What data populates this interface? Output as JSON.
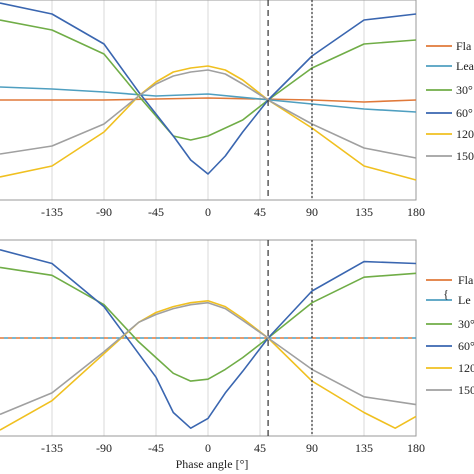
{
  "chart_data": [
    {
      "type": "line",
      "xlim": [
        -180,
        180
      ],
      "ylim": [
        0,
        1
      ],
      "x_ticks": [
        -135,
        -90,
        -45,
        0,
        45,
        90,
        135,
        180
      ],
      "x_tick_labels": [
        "-135",
        "-90",
        "-45",
        "0",
        "45",
        "90",
        "135",
        "180"
      ],
      "xlabel": "",
      "grid": "vertical",
      "reference_lines": [
        {
          "x": 52,
          "style": "dashed"
        },
        {
          "x": 90,
          "style": "dotted"
        }
      ],
      "legend_position": "right",
      "legend_entries": [
        "Fla",
        "Lea",
        "30°",
        "60°",
        "120",
        "150"
      ],
      "colors": {
        "Fla": "#e0793a",
        "Lea": "#4f9fc0",
        "30°": "#70ad47",
        "60°": "#3a66b0",
        "120": "#f0c020",
        "150": "#a0a0a0"
      },
      "series": [
        {
          "name": "Fla",
          "points": [
            [
              -180,
              0.5
            ],
            [
              -135,
              0.5
            ],
            [
              -90,
              0.5
            ],
            [
              -45,
              0.505
            ],
            [
              0,
              0.51
            ],
            [
              45,
              0.505
            ],
            [
              90,
              0.5
            ],
            [
              135,
              0.49
            ],
            [
              180,
              0.5
            ]
          ]
        },
        {
          "name": "Lea",
          "points": [
            [
              -180,
              0.565
            ],
            [
              -135,
              0.555
            ],
            [
              -90,
              0.54
            ],
            [
              -45,
              0.52
            ],
            [
              0,
              0.53
            ],
            [
              45,
              0.505
            ],
            [
              90,
              0.48
            ],
            [
              135,
              0.455
            ],
            [
              180,
              0.44
            ]
          ]
        },
        {
          "name": "30°",
          "points": [
            [
              -180,
              0.9
            ],
            [
              -135,
              0.85
            ],
            [
              -90,
              0.73
            ],
            [
              -60,
              0.52
            ],
            [
              -45,
              0.42
            ],
            [
              -30,
              0.32
            ],
            [
              -15,
              0.3
            ],
            [
              0,
              0.32
            ],
            [
              30,
              0.4
            ],
            [
              52,
              0.5
            ],
            [
              90,
              0.66
            ],
            [
              135,
              0.78
            ],
            [
              180,
              0.8
            ]
          ]
        },
        {
          "name": "60°",
          "points": [
            [
              -180,
              0.985
            ],
            [
              -135,
              0.93
            ],
            [
              -90,
              0.78
            ],
            [
              -60,
              0.54
            ],
            [
              -45,
              0.43
            ],
            [
              -30,
              0.32
            ],
            [
              -15,
              0.2
            ],
            [
              0,
              0.13
            ],
            [
              15,
              0.22
            ],
            [
              30,
              0.34
            ],
            [
              52,
              0.5
            ],
            [
              90,
              0.72
            ],
            [
              135,
              0.9
            ],
            [
              180,
              0.93
            ]
          ]
        },
        {
          "name": "120",
          "points": [
            [
              -180,
              0.115
            ],
            [
              -135,
              0.17
            ],
            [
              -90,
              0.34
            ],
            [
              -60,
              0.52
            ],
            [
              -45,
              0.59
            ],
            [
              -30,
              0.64
            ],
            [
              -15,
              0.66
            ],
            [
              0,
              0.67
            ],
            [
              15,
              0.65
            ],
            [
              30,
              0.6
            ],
            [
              52,
              0.5
            ],
            [
              90,
              0.36
            ],
            [
              135,
              0.17
            ],
            [
              180,
              0.1
            ]
          ]
        },
        {
          "name": "150",
          "points": [
            [
              -180,
              0.23
            ],
            [
              -135,
              0.27
            ],
            [
              -90,
              0.38
            ],
            [
              -60,
              0.52
            ],
            [
              -45,
              0.58
            ],
            [
              -30,
              0.62
            ],
            [
              -15,
              0.64
            ],
            [
              0,
              0.65
            ],
            [
              15,
              0.63
            ],
            [
              30,
              0.58
            ],
            [
              52,
              0.5
            ],
            [
              90,
              0.38
            ],
            [
              135,
              0.26
            ],
            [
              180,
              0.21
            ]
          ]
        }
      ]
    },
    {
      "type": "line",
      "xlim": [
        -180,
        180
      ],
      "ylim": [
        0,
        1
      ],
      "x_ticks": [
        -135,
        -90,
        -45,
        0,
        45,
        90,
        135,
        180
      ],
      "x_tick_labels": [
        "-135",
        "-90",
        "-45",
        "0",
        "45",
        "90",
        "135",
        "180"
      ],
      "xlabel": "Phase angle [°]",
      "grid": "vertical",
      "reference_lines": [
        {
          "x": 52,
          "style": "dashed"
        },
        {
          "x": 90,
          "style": "dotted"
        }
      ],
      "legend_position": "right",
      "legend_entries": [
        "Fla",
        "Le",
        "30°",
        "60°",
        "120",
        "150"
      ],
      "legend_brace": "{",
      "colors": {
        "Fla": "#e0793a",
        "Le": "#4f9fc0",
        "30°": "#70ad47",
        "60°": "#3a66b0",
        "120": "#f0c020",
        "150": "#a0a0a0"
      },
      "series": [
        {
          "name": "Fla",
          "style": "dashed",
          "points": [
            [
              -180,
              0.5
            ],
            [
              0,
              0.5
            ],
            [
              180,
              0.5
            ]
          ]
        },
        {
          "name": "Le",
          "style": "dashed-offset",
          "points": [
            [
              -180,
              0.5
            ],
            [
              0,
              0.5
            ],
            [
              180,
              0.5
            ]
          ]
        },
        {
          "name": "30°",
          "points": [
            [
              -180,
              0.86
            ],
            [
              -135,
              0.82
            ],
            [
              -90,
              0.67
            ],
            [
              -60,
              0.48
            ],
            [
              -45,
              0.4
            ],
            [
              -30,
              0.32
            ],
            [
              -15,
              0.28
            ],
            [
              0,
              0.29
            ],
            [
              15,
              0.34
            ],
            [
              30,
              0.4
            ],
            [
              52,
              0.5
            ],
            [
              90,
              0.68
            ],
            [
              135,
              0.81
            ],
            [
              180,
              0.83
            ]
          ]
        },
        {
          "name": "60°",
          "points": [
            [
              -180,
              0.95
            ],
            [
              -135,
              0.88
            ],
            [
              -90,
              0.66
            ],
            [
              -60,
              0.42
            ],
            [
              -45,
              0.3
            ],
            [
              -30,
              0.12
            ],
            [
              -15,
              0.04
            ],
            [
              0,
              0.09
            ],
            [
              15,
              0.22
            ],
            [
              30,
              0.33
            ],
            [
              52,
              0.5
            ],
            [
              90,
              0.74
            ],
            [
              135,
              0.89
            ],
            [
              180,
              0.88
            ]
          ]
        },
        {
          "name": "120",
          "points": [
            [
              -180,
              0.03
            ],
            [
              -135,
              0.18
            ],
            [
              -90,
              0.42
            ],
            [
              -60,
              0.58
            ],
            [
              -45,
              0.63
            ],
            [
              -30,
              0.66
            ],
            [
              -15,
              0.68
            ],
            [
              0,
              0.69
            ],
            [
              15,
              0.66
            ],
            [
              30,
              0.6
            ],
            [
              52,
              0.5
            ],
            [
              90,
              0.28
            ],
            [
              135,
              0.12
            ],
            [
              162,
              0.04
            ],
            [
              180,
              0.1
            ]
          ]
        },
        {
          "name": "150",
          "points": [
            [
              -180,
              0.11
            ],
            [
              -135,
              0.22
            ],
            [
              -90,
              0.43
            ],
            [
              -60,
              0.58
            ],
            [
              -45,
              0.62
            ],
            [
              -30,
              0.65
            ],
            [
              -15,
              0.67
            ],
            [
              0,
              0.68
            ],
            [
              15,
              0.65
            ],
            [
              30,
              0.59
            ],
            [
              52,
              0.5
            ],
            [
              90,
              0.34
            ],
            [
              135,
              0.2
            ],
            [
              180,
              0.16
            ]
          ]
        }
      ]
    }
  ]
}
